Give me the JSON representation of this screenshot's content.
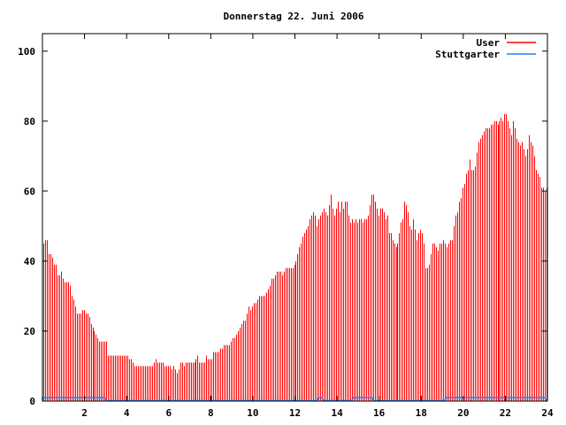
{
  "chart_data": {
    "type": "bar",
    "title": "Donnerstag 22. Juni 2006",
    "xlabel": "",
    "ylabel": "",
    "xlim": [
      0,
      24
    ],
    "ylim": [
      0,
      105
    ],
    "x_step_hours": 0.0833333,
    "xticks": [
      2,
      4,
      6,
      8,
      10,
      12,
      14,
      16,
      18,
      20,
      22,
      24
    ],
    "yticks": [
      0,
      20,
      40,
      60,
      80,
      100
    ],
    "grid": false,
    "legend_position": "top-right",
    "series": [
      {
        "name": "User",
        "color": "#ff0000",
        "style": "impulses",
        "values": [
          45,
          46,
          46,
          42,
          42,
          41,
          39,
          39,
          36,
          36,
          37,
          35,
          34,
          34,
          34,
          33,
          30,
          29,
          27,
          25,
          25,
          25,
          26,
          26,
          25,
          25,
          24,
          22,
          21,
          20,
          19,
          18,
          17,
          17,
          17,
          17,
          17,
          13,
          13,
          13,
          13,
          13,
          13,
          13,
          13,
          13,
          13,
          13,
          13,
          12,
          12,
          11,
          10,
          10,
          10,
          10,
          10,
          10,
          10,
          10,
          10,
          10,
          10,
          11,
          12,
          11,
          11,
          11,
          11,
          10,
          10,
          10,
          10,
          9,
          10,
          9,
          8,
          9,
          11,
          11,
          10,
          11,
          11,
          11,
          11,
          11,
          11,
          12,
          13,
          11,
          11,
          11,
          11,
          13,
          12,
          12,
          12,
          14,
          14,
          14,
          14,
          15,
          15,
          16,
          16,
          16,
          16,
          17,
          18,
          18,
          19,
          20,
          21,
          22,
          23,
          23,
          25,
          27,
          26,
          27,
          28,
          28,
          29,
          30,
          30,
          30,
          30,
          31,
          32,
          33,
          35,
          35,
          36,
          37,
          37,
          37,
          36,
          37,
          38,
          38,
          38,
          38,
          38,
          39,
          40,
          42,
          44,
          45,
          47,
          48,
          49,
          50,
          52,
          53,
          54,
          53,
          50,
          52,
          53,
          54,
          55,
          54,
          53,
          56,
          59,
          55,
          53,
          55,
          57,
          54,
          57,
          55,
          57,
          57,
          53,
          51,
          52,
          51,
          52,
          51,
          52,
          52,
          51,
          52,
          52,
          53,
          56,
          59,
          59,
          57,
          55,
          53,
          55,
          55,
          54,
          52,
          53,
          48,
          48,
          46,
          45,
          44,
          45,
          48,
          51,
          52,
          57,
          56,
          54,
          50,
          49,
          52,
          49,
          46,
          48,
          49,
          48,
          45,
          38,
          38,
          39,
          42,
          45,
          45,
          44,
          43,
          45,
          45,
          46,
          45,
          44,
          45,
          46,
          46,
          50,
          53,
          54,
          57,
          58,
          61,
          62,
          65,
          66,
          69,
          66,
          66,
          67,
          71,
          74,
          75,
          76,
          77,
          78,
          78,
          78,
          79,
          79,
          80,
          80,
          79,
          80,
          81,
          80,
          82,
          82,
          80,
          78,
          76,
          80,
          78,
          75,
          74,
          73,
          74,
          72,
          70,
          72,
          76,
          74,
          73,
          70,
          66,
          65,
          64,
          61,
          61,
          60,
          61
        ]
      },
      {
        "name": "Stuttgarter",
        "color": "#1e82ff",
        "style": "lines",
        "active_ranges": [
          [
            0,
            3.05
          ],
          [
            13.05,
            13.35
          ],
          [
            14.7,
            15.75
          ],
          [
            19.1,
            23.95
          ]
        ],
        "active_value": 1
      }
    ]
  }
}
